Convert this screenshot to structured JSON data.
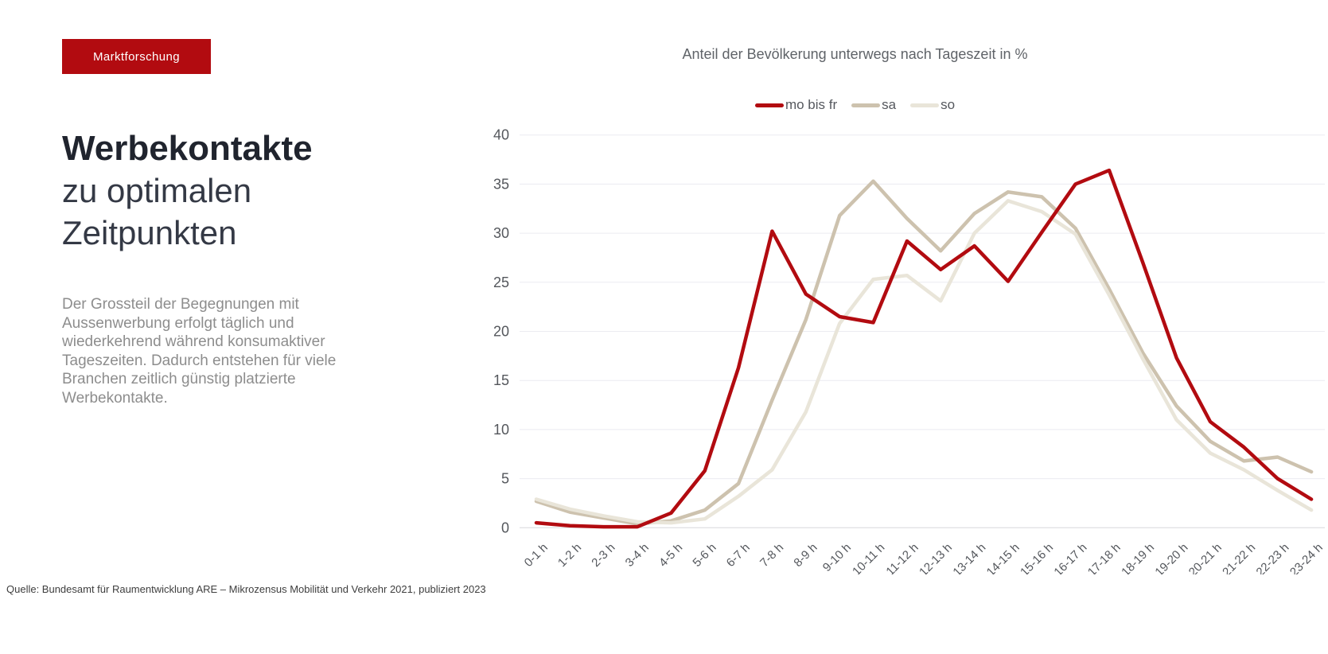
{
  "page": {
    "badge": "Marktforschung",
    "title_line1": "Werbekontakte",
    "title_line2": "zu optimalen",
    "title_line3": "Zeitpunkten",
    "paragraph": "Der Grossteil der Begegnungen mit Aussenwerbung erfolgt täglich und wiederkehrend während konsumaktiver Tageszeiten. Dadurch entstehen für viele Branchen zeitlich günstig platzierte Werbekontakte.",
    "footer": "Quelle: Bundesamt für Raumentwicklung ARE – Mikrozensus Mobilität und Verkehr 2021, publiziert 2023"
  },
  "chart_data": {
    "type": "line",
    "title": "Anteil der Bevölkerung unterwegs nach Tageszeit in %",
    "categories": [
      "0-1 h",
      "1-2 h",
      "2-3 h",
      "3-4 h",
      "4-5 h",
      "5-6 h",
      "6-7 h",
      "7-8 h",
      "8-9 h",
      "9-10 h",
      "10-11 h",
      "11-12 h",
      "12-13 h",
      "13-14 h",
      "14-15 h",
      "15-16 h",
      "16-17 h",
      "17-18 h",
      "18-19 h",
      "19-20 h",
      "20-21 h",
      "21-22 h",
      "22-23 h",
      "23-24 h"
    ],
    "series": [
      {
        "name": "mo bis fr",
        "color": "#b20b10",
        "values": [
          0.5,
          0.2,
          0.1,
          0.1,
          1.5,
          5.8,
          16.3,
          30.2,
          23.8,
          21.5,
          20.9,
          29.2,
          26.3,
          28.7,
          25.1,
          30.1,
          35.0,
          36.4,
          27.0,
          17.3,
          10.8,
          8.2,
          5.0,
          2.9
        ]
      },
      {
        "name": "sa",
        "color": "#cdc2ae",
        "values": [
          2.7,
          1.6,
          1.0,
          0.4,
          0.7,
          1.8,
          4.5,
          13.0,
          21.2,
          31.8,
          35.3,
          31.5,
          28.2,
          32.0,
          34.2,
          33.7,
          30.5,
          24.3,
          17.8,
          12.4,
          8.8,
          6.8,
          7.2,
          5.7
        ]
      },
      {
        "name": "so",
        "color": "#e9e5d9",
        "values": [
          2.9,
          1.9,
          1.2,
          0.6,
          0.5,
          0.9,
          3.2,
          5.9,
          11.8,
          20.8,
          25.3,
          25.7,
          23.1,
          30.0,
          33.3,
          32.2,
          29.9,
          23.7,
          17.2,
          11.0,
          7.6,
          5.9,
          3.8,
          1.8
        ]
      }
    ],
    "ylim": [
      0,
      40
    ],
    "ytick_step": 5,
    "grid": true,
    "legend_position": "top"
  }
}
